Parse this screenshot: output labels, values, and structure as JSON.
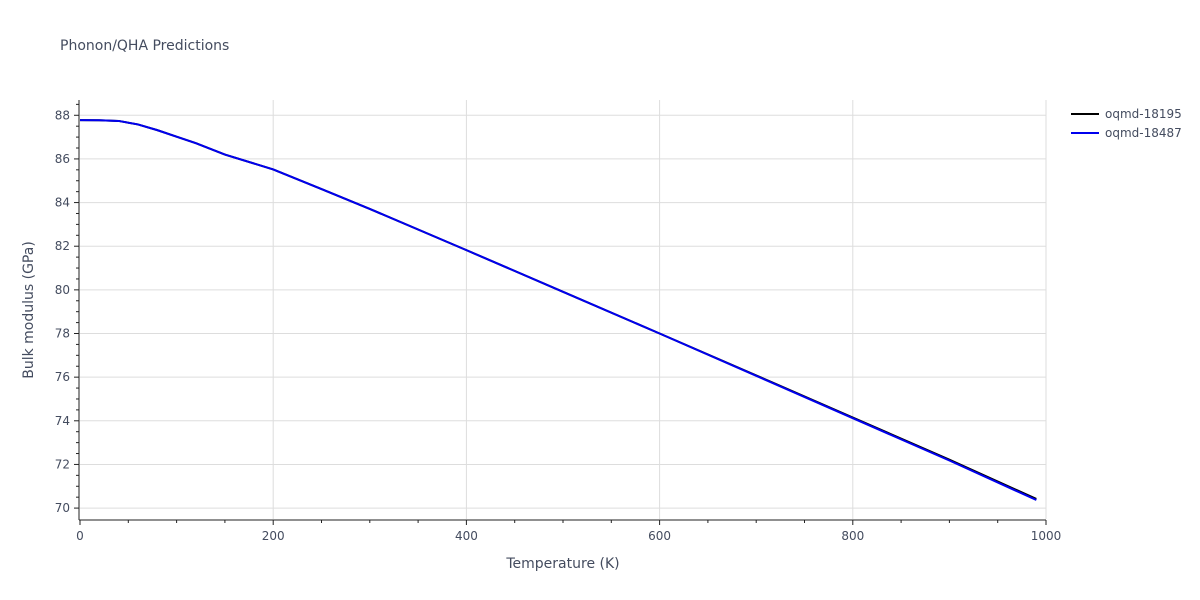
{
  "chart_data": {
    "type": "line",
    "title": "Phonon/QHA Predictions",
    "xlabel": "Temperature (K)",
    "ylabel": "Bulk modulus (GPa)",
    "xlim": [
      0,
      1000
    ],
    "ylim": [
      69.5,
      88.7
    ],
    "xticks": [
      0,
      200,
      400,
      600,
      800,
      1000
    ],
    "yticks": [
      70,
      72,
      74,
      76,
      78,
      80,
      82,
      84,
      86,
      88
    ],
    "grid": true,
    "legend_position": "top-right",
    "series": [
      {
        "name": "oqmd-18195",
        "color": "#000000",
        "x": [
          0,
          20,
          40,
          60,
          80,
          100,
          120,
          150,
          200,
          250,
          300,
          400,
          500,
          600,
          700,
          800,
          900,
          990
        ],
        "y": [
          87.78,
          87.77,
          87.74,
          87.58,
          87.32,
          87.02,
          86.72,
          86.2,
          85.52,
          84.62,
          83.71,
          81.82,
          79.91,
          78.0,
          76.08,
          74.15,
          72.22,
          70.42
        ]
      },
      {
        "name": "oqmd-18487",
        "color": "#0000ee",
        "x": [
          0,
          20,
          40,
          60,
          80,
          100,
          120,
          150,
          200,
          250,
          300,
          400,
          500,
          600,
          700,
          800,
          900,
          990
        ],
        "y": [
          87.78,
          87.77,
          87.74,
          87.58,
          87.32,
          87.02,
          86.72,
          86.2,
          85.52,
          84.62,
          83.71,
          81.82,
          79.91,
          78.0,
          76.06,
          74.12,
          72.18,
          70.37
        ]
      }
    ]
  }
}
